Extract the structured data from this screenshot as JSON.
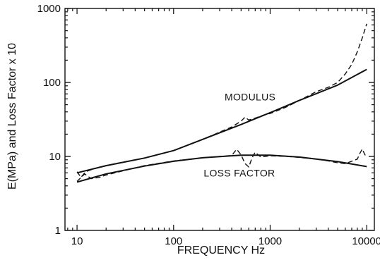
{
  "chart_data": {
    "type": "line",
    "xlabel": "FREQUENCY Hz",
    "ylabel": "E(MPa)  and Loss Factor x 10",
    "x_scale": "log",
    "y_scale": "log",
    "xlim": [
      7.5,
      12000
    ],
    "ylim": [
      1,
      1000
    ],
    "x_ticks": [
      {
        "value": 10,
        "label": "10"
      },
      {
        "value": 100,
        "label": "100"
      },
      {
        "value": 1000,
        "label": "1000"
      },
      {
        "value": 10000,
        "label": "10000"
      }
    ],
    "y_ticks": [
      {
        "value": 1,
        "label": "1"
      },
      {
        "value": 10,
        "label": "10"
      },
      {
        "value": 100,
        "label": "100"
      },
      {
        "value": 1000,
        "label": "1000"
      }
    ],
    "grid": false,
    "legend": "none",
    "annotations": [
      {
        "text": "MODULUS",
        "x": 620,
        "y": 64
      },
      {
        "text": "LOSS FACTOR",
        "x": 480,
        "y": 6.0
      }
    ],
    "series": [
      {
        "style": "solid",
        "x": [
          10,
          20,
          50,
          100,
          200,
          500,
          1000,
          2000,
          5000,
          10000
        ],
        "y": [
          6.0,
          7.5,
          9.5,
          12,
          17,
          27,
          39,
          57,
          92,
          150
        ]
      },
      {
        "style": "dashed",
        "x": [
          10,
          11,
          12,
          13,
          15,
          20,
          30,
          50,
          100,
          200,
          400,
          500,
          550,
          600,
          700,
          900,
          1000,
          1500,
          2000,
          3000,
          4000,
          5000,
          6000,
          7000,
          8000,
          9000,
          10000
        ],
        "y": [
          6.2,
          5.2,
          6.0,
          6.4,
          6.8,
          7.5,
          8.4,
          9.5,
          12,
          17,
          25,
          30,
          34,
          31,
          33,
          37,
          38,
          47,
          57,
          75,
          86,
          100,
          130,
          175,
          260,
          400,
          620
        ]
      },
      {
        "style": "solid",
        "x": [
          10,
          20,
          50,
          100,
          200,
          500,
          1000,
          2000,
          5000,
          10000
        ],
        "y": [
          4.5,
          5.8,
          7.4,
          8.6,
          9.6,
          10.4,
          10.4,
          9.8,
          8.5,
          7.3
        ]
      },
      {
        "style": "dashed",
        "x": [
          10,
          12,
          14,
          17,
          20,
          30,
          50,
          100,
          200,
          400,
          450,
          500,
          550,
          600,
          650,
          700,
          800,
          1000,
          1500,
          2000,
          3000,
          4000,
          5000,
          6000,
          7000,
          8000,
          8500,
          9000,
          9500,
          10000
        ],
        "y": [
          4.6,
          5.8,
          5.0,
          5.2,
          5.6,
          6.4,
          7.5,
          8.7,
          9.6,
          10.3,
          12.5,
          10.5,
          8.0,
          7.2,
          9.6,
          11.4,
          9.8,
          10.2,
          10.0,
          9.7,
          9.2,
          8.7,
          8.2,
          8.0,
          8.6,
          9.2,
          11.0,
          12.6,
          10.8,
          9.6
        ]
      }
    ]
  }
}
